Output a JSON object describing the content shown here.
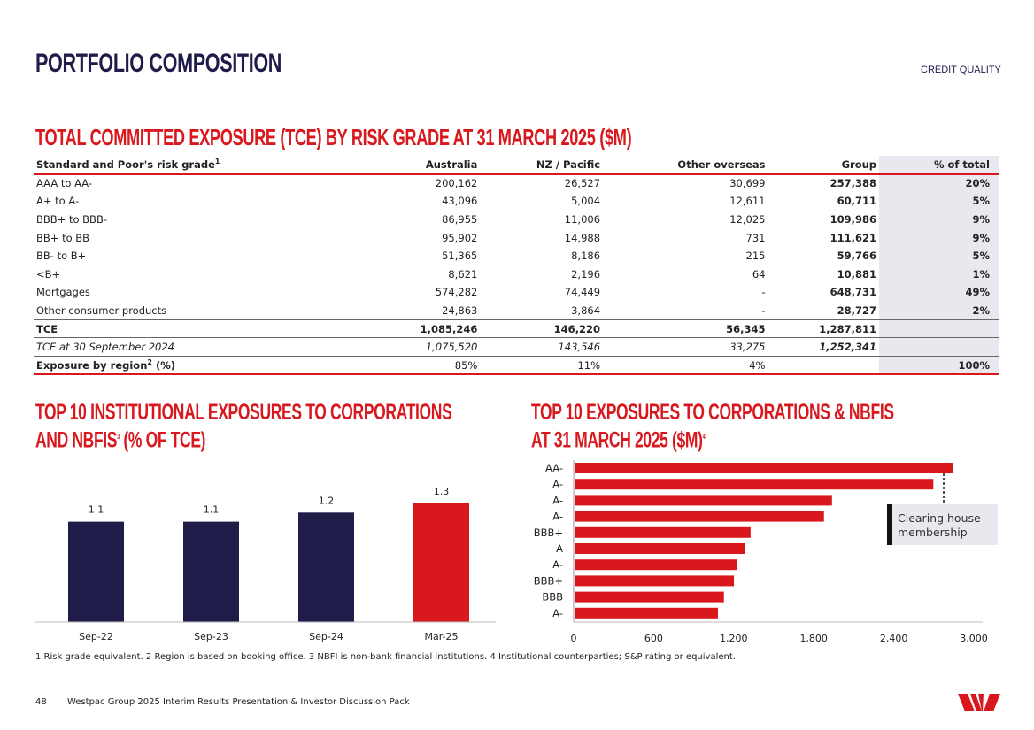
{
  "header": {
    "title": "Portfolio composition",
    "section": "CREDIT QUALITY"
  },
  "tce": {
    "title": "Total committed exposure (TCE) by risk grade at 31 March 2025 ($M)",
    "columns": [
      "Standard and Poor's risk grade",
      "Australia",
      "NZ / Pacific",
      "Other overseas",
      "Group",
      "% of total"
    ],
    "header_sup": "1",
    "rows": [
      [
        "AAA to AA-",
        "200,162",
        "26,527",
        "30,699",
        "257,388",
        "20%"
      ],
      [
        "A+ to A-",
        "43,096",
        "5,004",
        "12,611",
        "60,711",
        "5%"
      ],
      [
        "BBB+ to BBB-",
        "86,955",
        "11,006",
        "12,025",
        "109,986",
        "9%"
      ],
      [
        "BB+ to BB",
        "95,902",
        "14,988",
        "731",
        "111,621",
        "9%"
      ],
      [
        "BB- to B+",
        "51,365",
        "8,186",
        "215",
        "59,766",
        "5%"
      ],
      [
        "<B+",
        "8,621",
        "2,196",
        "64",
        "10,881",
        "1%"
      ],
      [
        "Mortgages",
        "574,282",
        "74,449",
        "-",
        "648,731",
        "49%"
      ],
      [
        "Other consumer products",
        "24,863",
        "3,864",
        "-",
        "28,727",
        "2%"
      ]
    ],
    "total": [
      "TCE",
      "1,085,246",
      "146,220",
      "56,345",
      "1,287,811",
      ""
    ],
    "prior": [
      "TCE at 30 September 2024",
      "1,075,520",
      "143,546",
      "33,275",
      "1,252,341",
      ""
    ],
    "region": {
      "label": "Exposure by region",
      "sup": "2",
      "suffix": " (%)",
      "values": [
        "85%",
        "11%",
        "4%",
        "",
        "100%"
      ]
    }
  },
  "chart_data": [
    {
      "type": "bar",
      "title_lines": [
        "Top 10 institutional exposures to corporations",
        "and NBFIs"
      ],
      "title_sup": "3",
      "title_suffix": " (% of TCE)",
      "categories": [
        "Sep-22",
        "Sep-23",
        "Sep-24",
        "Mar-25"
      ],
      "values": [
        1.1,
        1.1,
        1.2,
        1.3
      ],
      "labels": [
        "1.1",
        "1.1",
        "1.2",
        "1.3"
      ],
      "colors": [
        "#1f1c4a",
        "#1f1c4a",
        "#1f1c4a",
        "#d9181d"
      ],
      "ylim": [
        0,
        1.4
      ],
      "grid": false
    },
    {
      "type": "bar",
      "orientation": "horizontal",
      "title_lines": [
        "Top 10 exposures to corporations & NBFIs",
        "at 31 March 2025 ($M)"
      ],
      "title_sup": "4",
      "categories": [
        "AA-",
        "A-",
        "A-",
        "A-",
        "BBB+",
        "A",
        "A-",
        "BBB+",
        "BBB",
        "A-"
      ],
      "values": [
        2840,
        2690,
        1930,
        1870,
        1320,
        1275,
        1220,
        1195,
        1120,
        1075
      ],
      "xlim": [
        0,
        3000
      ],
      "xticks": [
        "0",
        "600",
        "1,200",
        "1,800",
        "2,400",
        "3,000"
      ],
      "color": "#d9181d",
      "grid": false,
      "annotation": "Clearing house membership"
    }
  ],
  "footer": {
    "notes": "1 Risk grade equivalent. 2 Region is based on booking office. 3 NBFI is non-bank financial institutions. 4 Institutional counterparties; S&P rating or equivalent.",
    "page": "48",
    "doc": "Westpac Group 2025 Interim Results Presentation & Investor Discussion Pack"
  },
  "brand": {
    "logo": "Westpac",
    "color": "#d9181d"
  }
}
